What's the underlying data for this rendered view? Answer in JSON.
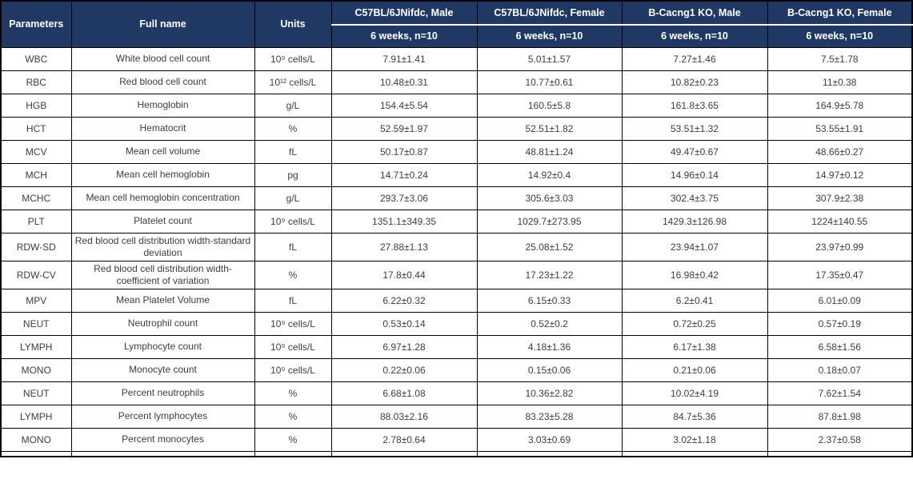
{
  "colors": {
    "header_bg": "#1f3864",
    "header_text": "#ffffff",
    "body_text": "#3d3d3d",
    "border": "#000000"
  },
  "table": {
    "header": {
      "parameters": "Parameters",
      "full_name": "Full name",
      "units": "Units",
      "groups": [
        {
          "title": "C57BL/6JNifdc, Male",
          "subtitle": "6 weeks, n=10"
        },
        {
          "title": "C57BL/6JNifdc, Female",
          "subtitle": "6 weeks, n=10"
        },
        {
          "title": "B-Cacng1 KO, Male",
          "subtitle": "6 weeks, n=10"
        },
        {
          "title": "B-Cacng1 KO, Female",
          "subtitle": "6 weeks, n=10"
        }
      ]
    },
    "rows": [
      {
        "param": "WBC",
        "full_name": "White blood cell count",
        "units": "10⁹ cells/L",
        "values": [
          "7.91±1.41",
          "5.01±1.57",
          "7.27±1.46",
          "7.5±1.78"
        ]
      },
      {
        "param": "RBC",
        "full_name": "Red blood cell count",
        "units": "10¹² cells/L",
        "values": [
          "10.48±0.31",
          "10.77±0.61",
          "10.82±0.23",
          "11±0.38"
        ]
      },
      {
        "param": "HGB",
        "full_name": "Hemoglobin",
        "units": "g/L",
        "values": [
          "154.4±5.54",
          "160.5±5.8",
          "161.8±3.65",
          "164.9±5.78"
        ]
      },
      {
        "param": "HCT",
        "full_name": "Hematocrit",
        "units": "%",
        "values": [
          "52.59±1.97",
          "52.51±1.82",
          "53.51±1.32",
          "53.55±1.91"
        ]
      },
      {
        "param": "MCV",
        "full_name": "Mean cell volume",
        "units": "fL",
        "values": [
          "50.17±0.87",
          "48.81±1.24",
          "49.47±0.67",
          "48.66±0.27"
        ]
      },
      {
        "param": "MCH",
        "full_name": "Mean cell hemoglobin",
        "units": "pg",
        "values": [
          "14.71±0.24",
          "14.92±0.4",
          "14.96±0.14",
          "14.97±0.12"
        ]
      },
      {
        "param": "MCHC",
        "full_name": "Mean cell hemoglobin concentration",
        "units": "g/L",
        "values": [
          "293.7±3.06",
          "305.6±3.03",
          "302.4±3.75",
          "307.9±2.38"
        ]
      },
      {
        "param": "PLT",
        "full_name": "Platelet count",
        "units": "10⁹ cells/L",
        "values": [
          "1351.1±349.35",
          "1029.7±273.95",
          "1429.3±126.98",
          "1224±140.55"
        ]
      },
      {
        "param": "RDW-SD",
        "full_name": "Red blood cell distribution width-standard deviation",
        "units": "fL",
        "values": [
          "27.88±1.13",
          "25.08±1.52",
          "23.94±1.07",
          "23.97±0.99"
        ]
      },
      {
        "param": "RDW-CV",
        "full_name": "Red blood cell distribution width-coefficient of variation",
        "units": "%",
        "values": [
          "17.8±0.44",
          "17.23±1.22",
          "16.98±0.42",
          "17.35±0.47"
        ]
      },
      {
        "param": "MPV",
        "full_name": "Mean Platelet Volume",
        "units": "fL",
        "values": [
          "6.22±0.32",
          "6.15±0.33",
          "6.2±0.41",
          "6.01±0.09"
        ]
      },
      {
        "param": "NEUT",
        "full_name": "Neutrophil count",
        "units": "10⁹ cells/L",
        "values": [
          "0.53±0.14",
          "0.52±0.2",
          "0.72±0.25",
          "0.57±0.19"
        ]
      },
      {
        "param": "LYMPH",
        "full_name": "Lymphocyte count",
        "units": "10⁹ cells/L",
        "values": [
          "6.97±1.28",
          "4.18±1.36",
          "6.17±1.38",
          "6.58±1.56"
        ]
      },
      {
        "param": "MONO",
        "full_name": "Monocyte count",
        "units": "10⁹ cells/L",
        "values": [
          "0.22±0.06",
          "0.15±0.06",
          "0.21±0.06",
          "0.18±0.07"
        ]
      },
      {
        "param": "NEUT",
        "full_name": "Percent neutrophils",
        "units": "%",
        "values": [
          "6.68±1.08",
          "10.36±2.82",
          "10.02±4.19",
          "7.62±1.54"
        ]
      },
      {
        "param": "LYMPH",
        "full_name": "Percent lymphocytes",
        "units": "%",
        "values": [
          "88.03±2.16",
          "83.23±5.28",
          "84.7±5.36",
          "87.8±1.98"
        ]
      },
      {
        "param": "MONO",
        "full_name": "Percent monocytes",
        "units": "%",
        "values": [
          "2.78±0.64",
          "3.03±0.69",
          "3.02±1.18",
          "2.37±0.58"
        ]
      }
    ]
  }
}
